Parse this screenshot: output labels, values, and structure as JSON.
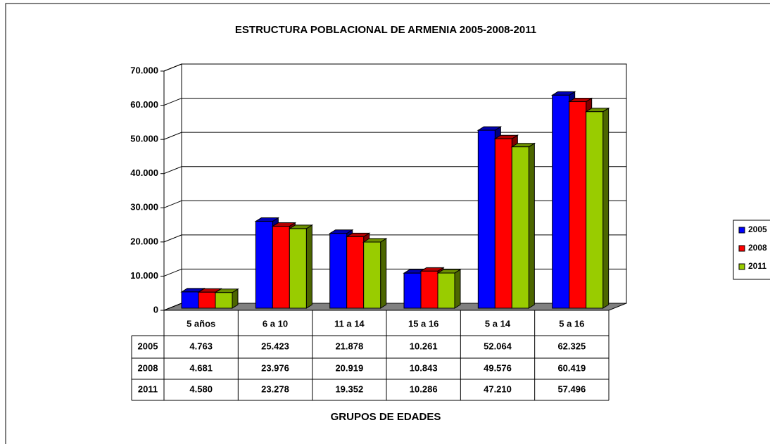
{
  "chart_data": {
    "type": "bar",
    "title": "ESTRUCTURA POBLACIONAL DE ARMENIA 2005-2008-2011",
    "x_label": "GRUPOS DE EDADES",
    "categories": [
      "5 años",
      "6 a 10",
      "11 a 14",
      "15 a 16",
      "5 a 14",
      "5 a 16"
    ],
    "series": [
      {
        "name": "2005",
        "color": "#0000ff",
        "values": [
          4763,
          25423,
          21878,
          10261,
          52064,
          62325
        ],
        "value_labels": [
          "4.763",
          "25.423",
          "21.878",
          "10.261",
          "52.064",
          "62.325"
        ]
      },
      {
        "name": "2008",
        "color": "#ff0000",
        "values": [
          4681,
          23976,
          20919,
          10843,
          49576,
          60419
        ],
        "value_labels": [
          "4.681",
          "23.976",
          "20.919",
          "10.843",
          "49.576",
          "60.419"
        ]
      },
      {
        "name": "2011",
        "color": "#99cc00",
        "values": [
          4580,
          23278,
          19352,
          10286,
          47210,
          57496
        ],
        "value_labels": [
          "4.580",
          "23.278",
          "19.352",
          "10.286",
          "47.210",
          "57.496"
        ]
      }
    ],
    "ylim": [
      0,
      70000
    ],
    "yticks": [
      0,
      {
        "value": 10000,
        "label": "10.000"
      },
      {
        "value": 20000,
        "label": "20.000"
      },
      {
        "value": 30000,
        "label": "30.000"
      },
      {
        "value": 40000,
        "label": "40.000"
      },
      {
        "value": 50000,
        "label": "50.000"
      },
      {
        "value": 60000,
        "label": "60.000"
      },
      {
        "value": 70000,
        "label": "70.000"
      }
    ],
    "grid": true,
    "legend": "right"
  }
}
